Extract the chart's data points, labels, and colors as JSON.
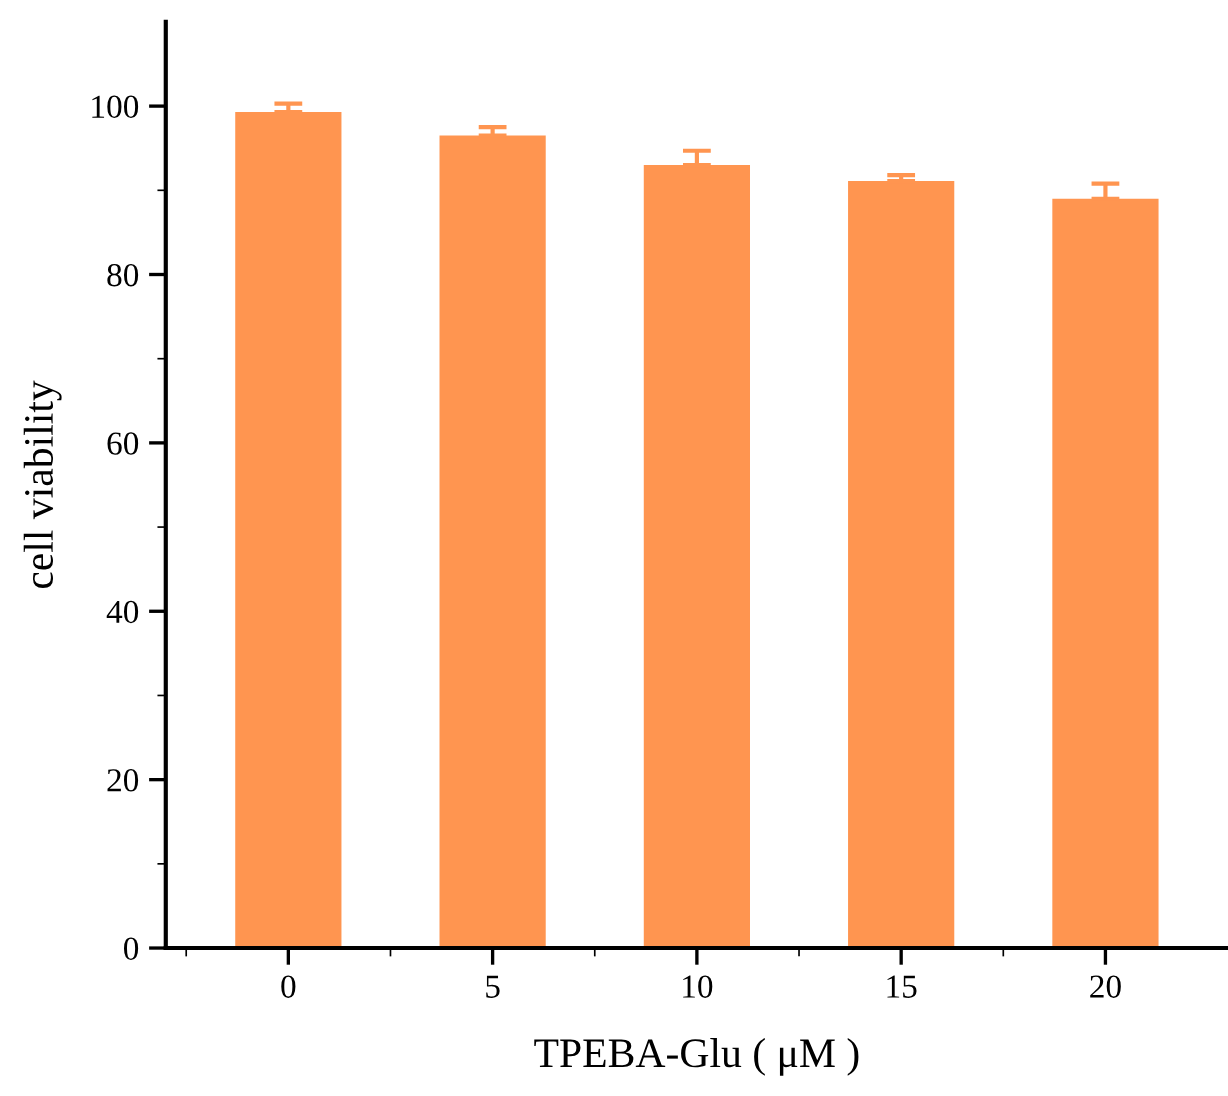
{
  "chart_data": {
    "type": "bar",
    "xlabel": "TPEBA-Glu ( μM )",
    "ylabel": "cell viability",
    "categories": [
      "0",
      "5",
      "10",
      "15",
      "20"
    ],
    "series": [
      {
        "color": "#ff9550",
        "values": [
          99.3,
          96.5,
          93.0,
          91.1,
          89.0
        ],
        "errors": [
          [
            99.3,
            100.3
          ],
          [
            96.5,
            97.5
          ],
          [
            93.0,
            94.7
          ],
          [
            91.1,
            91.8
          ],
          [
            89.0,
            90.8
          ]
        ]
      }
    ],
    "ylim": [
      0,
      110
    ],
    "yticks": [
      0,
      {
        "value": 10,
        "label": null
      },
      20,
      {
        "value": 30,
        "label": null
      },
      40,
      {
        "value": 50,
        "label": null
      },
      60,
      {
        "value": 70,
        "label": null
      },
      80,
      {
        "value": 90,
        "label": null
      },
      100
    ],
    "grid": false,
    "legend": false
  }
}
